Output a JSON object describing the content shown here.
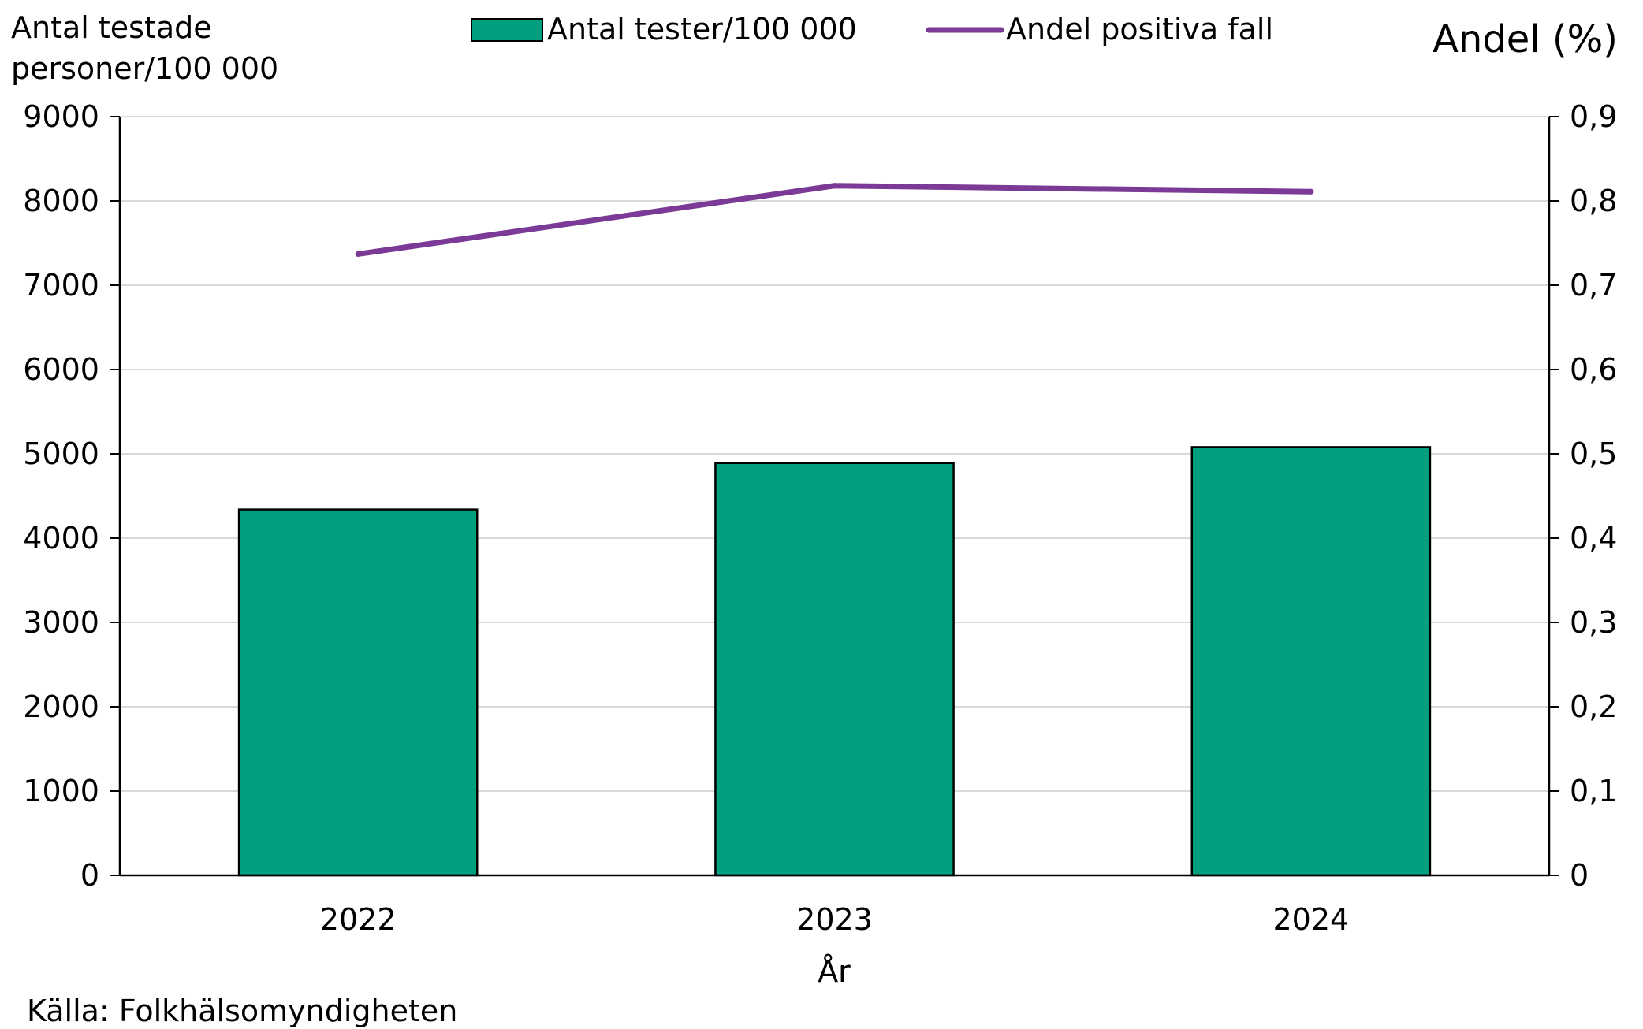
{
  "chart_data": {
    "type": "bar",
    "categories": [
      "2022",
      "2023",
      "2024"
    ],
    "series": [
      {
        "name": "Antal tester/100 000",
        "type": "bar",
        "axis": "left",
        "values": [
          4340,
          4890,
          5080
        ],
        "color": "#009F7E"
      },
      {
        "name": "Andel positiva fall",
        "type": "line",
        "axis": "right",
        "values": [
          0.737,
          0.818,
          0.811
        ],
        "color": "#7B3A96"
      }
    ],
    "ylabel_left_lines": [
      "Antal testade",
      "personer/100 000"
    ],
    "ylabel_right": "Andel (%)",
    "xlabel": "År",
    "ylim_left": [
      0,
      9000
    ],
    "ylim_right": [
      0,
      0.9
    ],
    "yticks_left": [
      "0",
      "1000",
      "2000",
      "3000",
      "4000",
      "5000",
      "6000",
      "7000",
      "8000",
      "9000"
    ],
    "yticks_right": [
      "0",
      "0,1",
      "0,2",
      "0,3",
      "0,4",
      "0,5",
      "0,6",
      "0,7",
      "0,8",
      "0,9"
    ],
    "grid": true,
    "legend_position": "top",
    "source": "Källa: Folkhälsomyndigheten"
  }
}
